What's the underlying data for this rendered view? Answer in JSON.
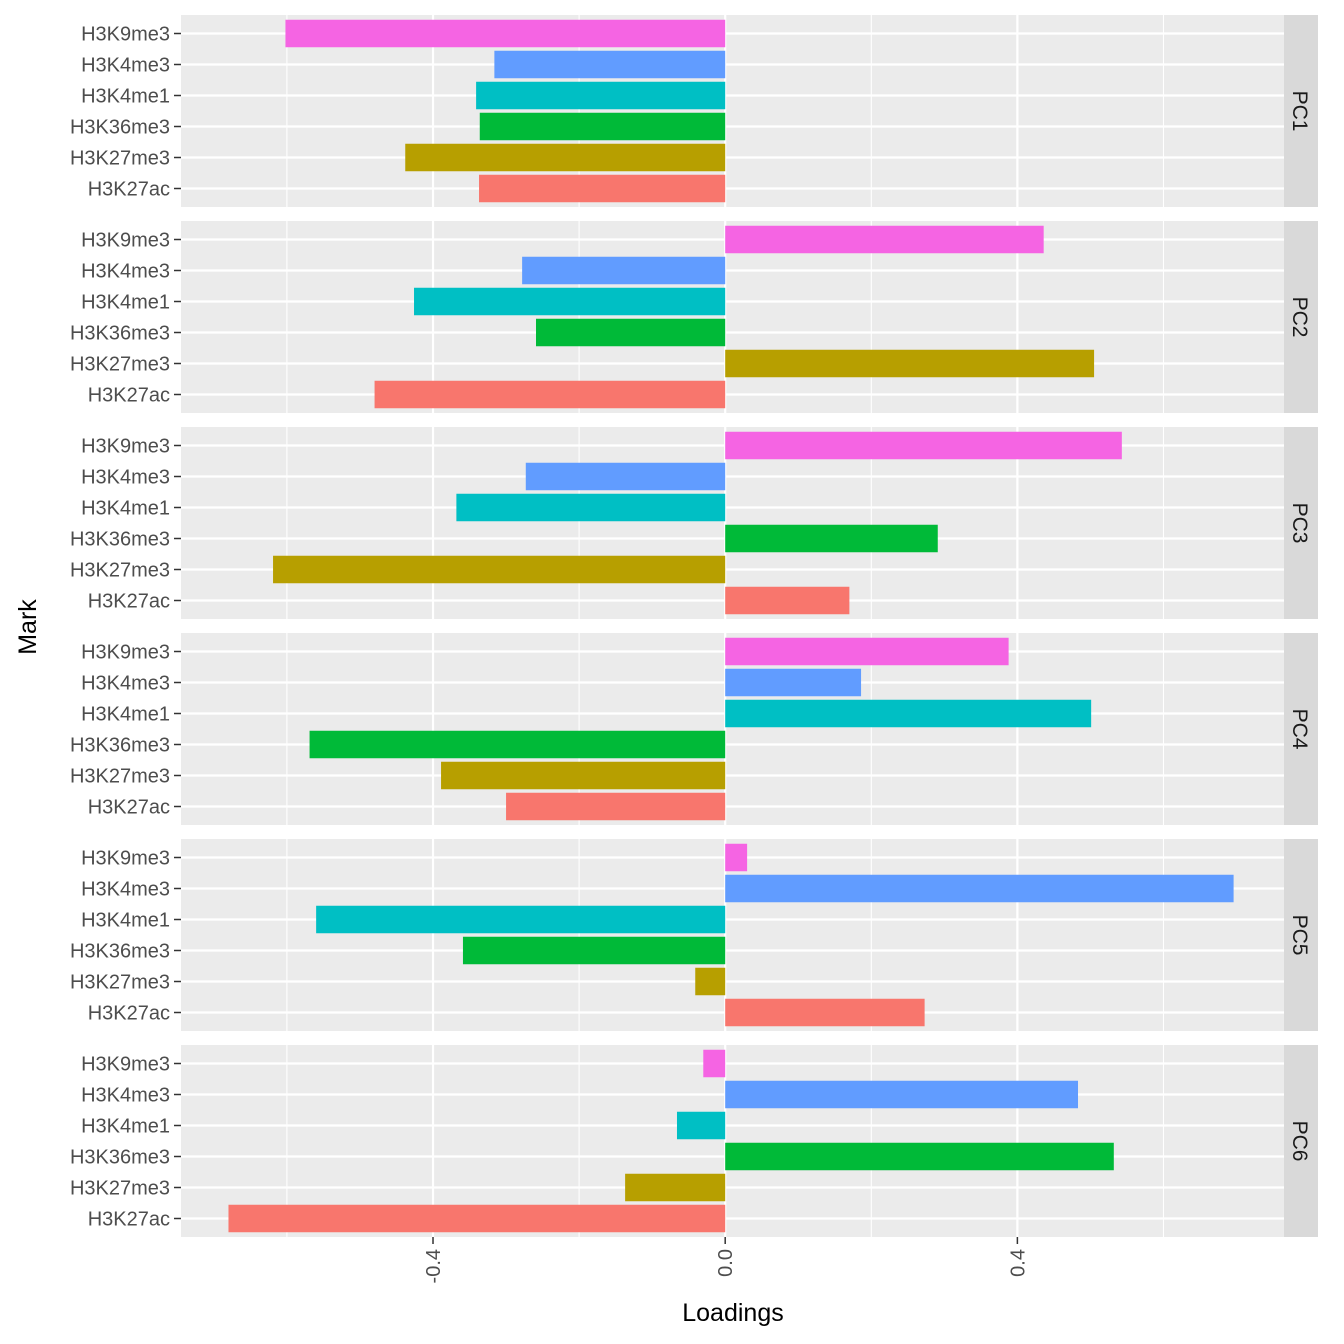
{
  "chart_data": {
    "type": "bar",
    "orientation": "horizontal",
    "xlabel": "Loadings",
    "ylabel": "Mark",
    "xlim": [
      -0.745,
      0.765
    ],
    "x_ticks": [
      -0.4,
      0.0,
      0.4
    ],
    "x_tick_labels": [
      "-0.4",
      "0.0",
      "0.4"
    ],
    "x_tick_label_rotation": -90,
    "grid": true,
    "legend": "none",
    "categories": [
      "H3K9me3",
      "H3K4me3",
      "H3K4me1",
      "H3K36me3",
      "H3K27me3",
      "H3K27ac"
    ],
    "colors": {
      "H3K9me3": "#F564E3",
      "H3K4me3": "#619CFF",
      "H3K4me1": "#00BFC4",
      "H3K36me3": "#00BA38",
      "H3K27me3": "#B79F00",
      "H3K27ac": "#F8766D"
    },
    "facets": [
      {
        "name": "PC1",
        "values": {
          "H3K9me3": -0.602,
          "H3K4me3": -0.316,
          "H3K4me1": -0.341,
          "H3K36me3": -0.336,
          "H3K27me3": -0.438,
          "H3K27ac": -0.337
        }
      },
      {
        "name": "PC2",
        "values": {
          "H3K9me3": 0.436,
          "H3K4me3": -0.278,
          "H3K4me1": -0.426,
          "H3K36me3": -0.259,
          "H3K27me3": 0.505,
          "H3K27ac": -0.48
        }
      },
      {
        "name": "PC3",
        "values": {
          "H3K9me3": 0.543,
          "H3K4me3": -0.273,
          "H3K4me1": -0.368,
          "H3K36me3": 0.291,
          "H3K27me3": -0.619,
          "H3K27ac": 0.17
        }
      },
      {
        "name": "PC4",
        "values": {
          "H3K9me3": 0.388,
          "H3K4me3": 0.186,
          "H3K4me1": 0.501,
          "H3K36me3": -0.569,
          "H3K27me3": -0.389,
          "H3K27ac": -0.3
        }
      },
      {
        "name": "PC5",
        "values": {
          "H3K9me3": 0.03,
          "H3K4me3": 0.696,
          "H3K4me1": -0.56,
          "H3K36me3": -0.359,
          "H3K27me3": -0.041,
          "H3K27ac": 0.273
        }
      },
      {
        "name": "PC6",
        "values": {
          "H3K9me3": -0.03,
          "H3K4me3": 0.483,
          "H3K4me1": -0.066,
          "H3K36me3": 0.532,
          "H3K27me3": -0.137,
          "H3K27ac": -0.68
        }
      }
    ]
  }
}
